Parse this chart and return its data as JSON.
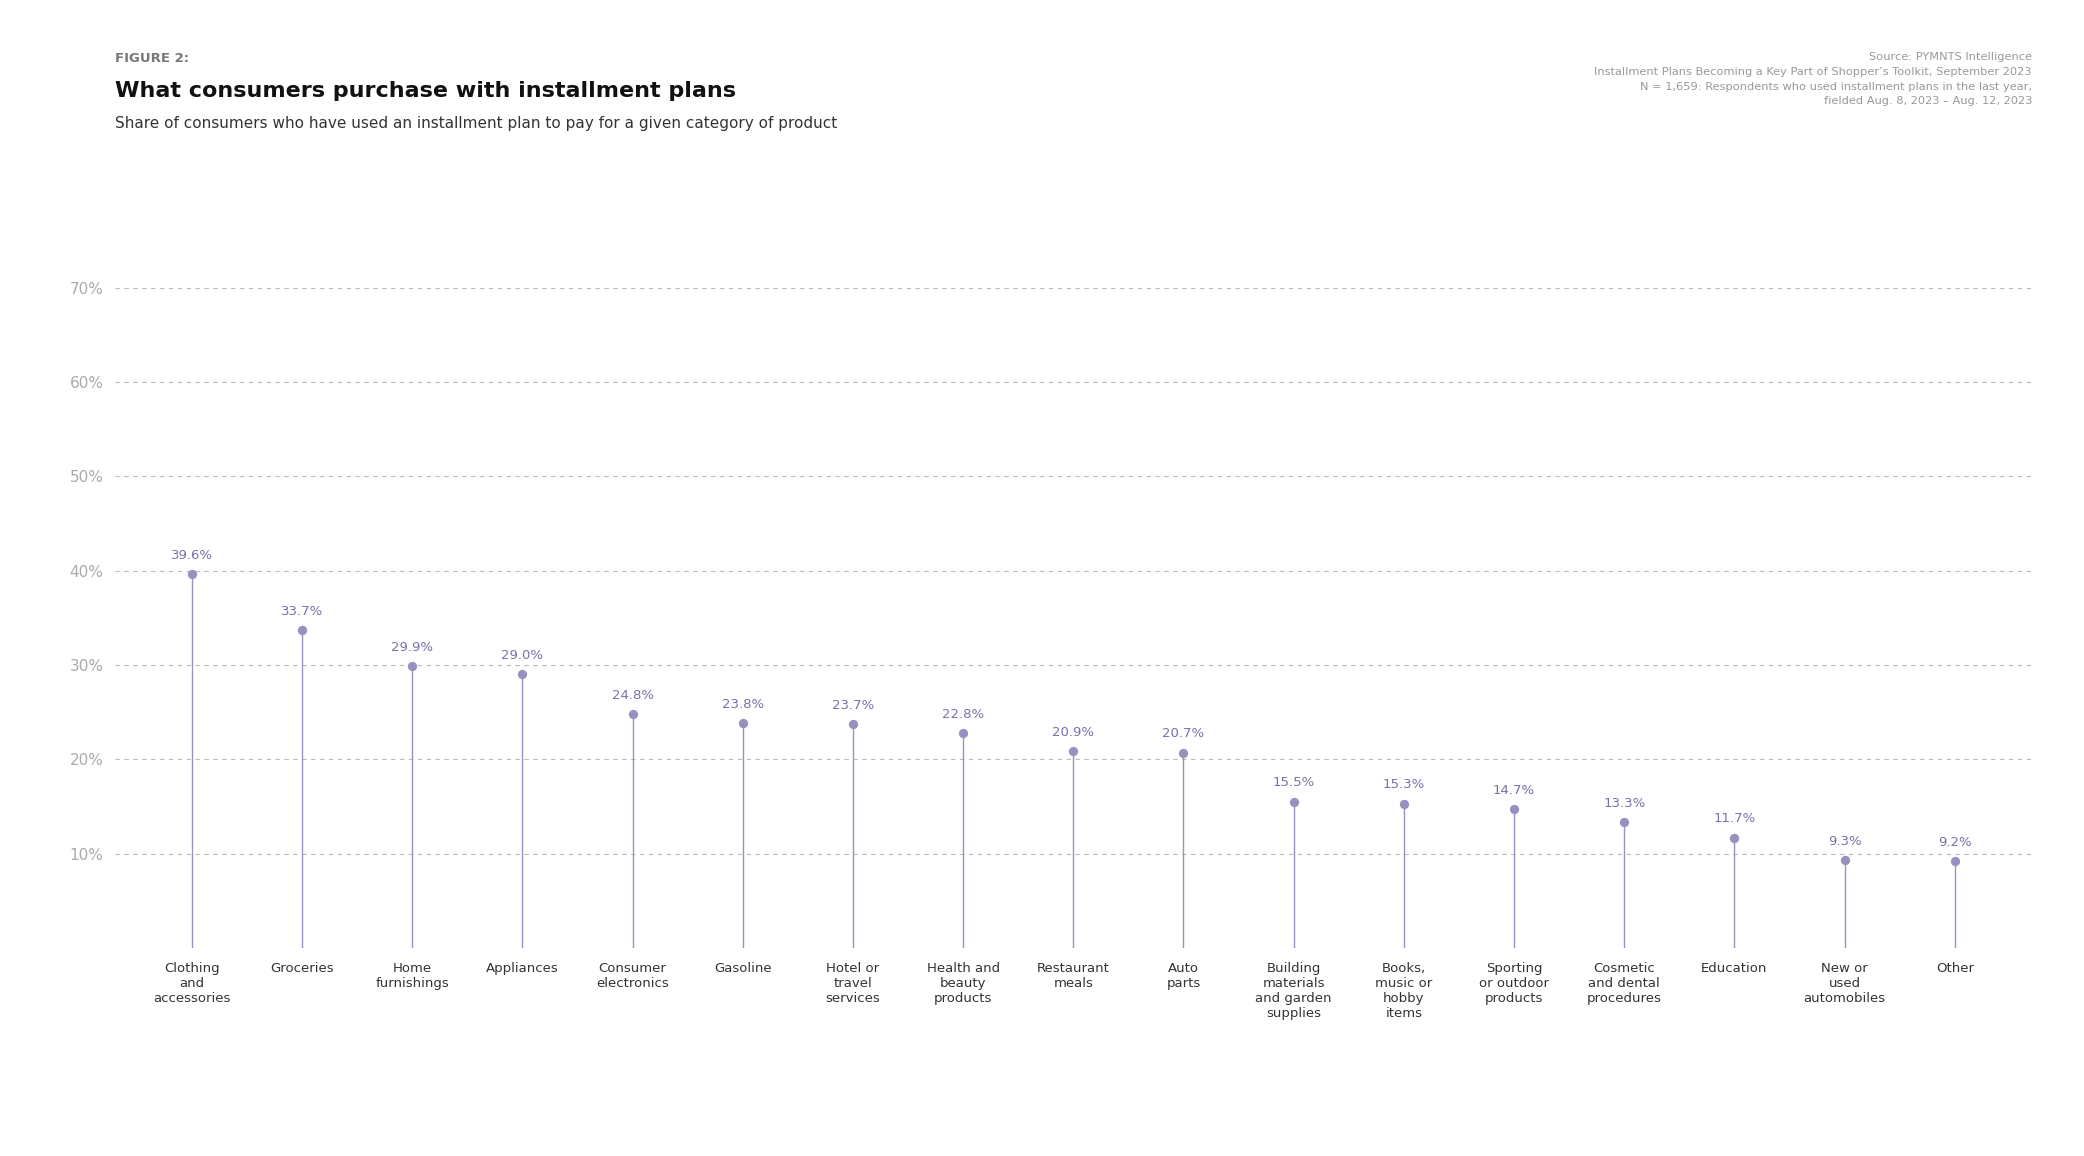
{
  "figure_label": "FIGURE 2:",
  "title": "What consumers purchase with installment plans",
  "subtitle": "Share of consumers who have used an installment plan to pay for a given category of product",
  "source_line1": "Source: PYMNTS Intelligence",
  "source_line2": "Installment Plans Becoming a Key Part of Shopper’s Toolkit, September 2023",
  "source_line3": "N = 1,659: Respondents who used installment plans in the last year,",
  "source_line4": "fielded Aug. 8, 2023 – Aug. 12, 2023",
  "categories": [
    "Clothing\nand\naccessories",
    "Groceries",
    "Home\nfurnishings",
    "Appliances",
    "Consumer\nelectronics",
    "Gasoline",
    "Hotel or\ntravel\nservices",
    "Health and\nbeauty\nproducts",
    "Restaurant\nmeals",
    "Auto\nparts",
    "Building\nmaterials\nand garden\nsupplies",
    "Books,\nmusic or\nhobby\nitems",
    "Sporting\nor outdoor\nproducts",
    "Cosmetic\nand dental\nprocedures",
    "Education",
    "New or\nused\nautomobiles",
    "Other"
  ],
  "values": [
    39.6,
    33.7,
    29.9,
    29.0,
    24.8,
    23.8,
    23.7,
    22.8,
    20.9,
    20.7,
    15.5,
    15.3,
    14.7,
    13.3,
    11.7,
    9.3,
    9.2
  ],
  "dot_color": "#9b8fc0",
  "line_color": "#9b8fc0",
  "label_color": "#7b6faa",
  "bg_color": "#ffffff",
  "grid_color": "#bbbbbb",
  "yticks": [
    10,
    20,
    30,
    40,
    50,
    60,
    70
  ],
  "ylim": [
    0,
    76
  ],
  "title_color": "#111111",
  "figure_label_color": "#777777",
  "subtitle_color": "#333333",
  "source_color": "#999999"
}
